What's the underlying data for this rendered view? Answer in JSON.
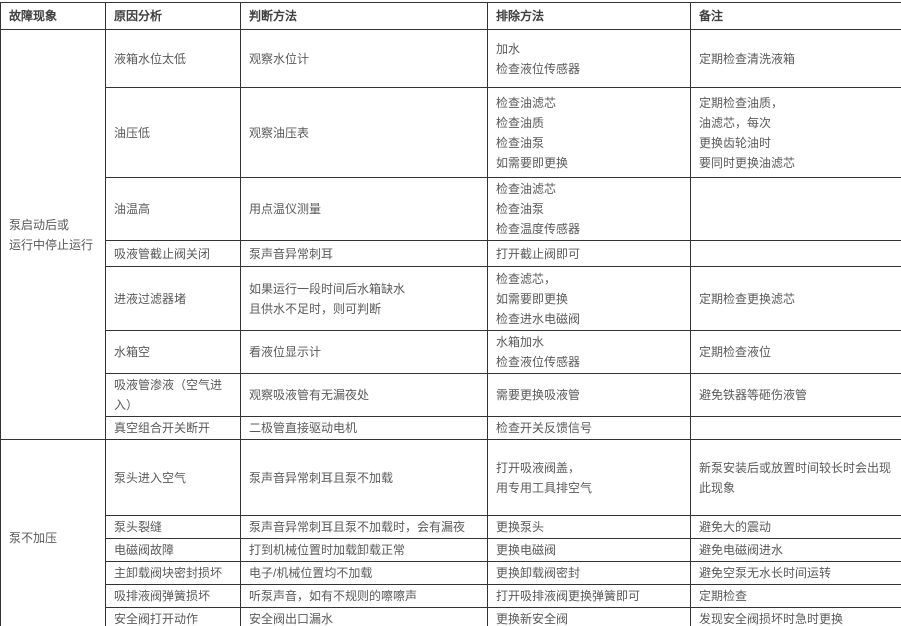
{
  "colors": {
    "border": "#333333",
    "header_text": "#404040",
    "body_text": "#5a5a5a",
    "background": "#ffffff"
  },
  "table": {
    "headers": [
      "故障现象",
      "原因分析",
      "判断方法",
      "排除方法",
      "备注"
    ],
    "groups": [
      {
        "fault": "泵启动后或\n运行中停止运行",
        "rows": [
          {
            "cause": "液箱水位太低",
            "method": "观察水位计",
            "fix": "加水\n检查液位传感器",
            "note": "定期检查清洗液箱"
          },
          {
            "cause": "油压低",
            "method": "观察油压表",
            "fix": "检查油滤芯\n检查油质\n检查油泵\n如需要即更换",
            "note": "定期检查油质，\n油滤芯，每次\n更换齿轮油时\n要同时更换油滤芯"
          },
          {
            "cause": "油温高",
            "method": "用点温仪测量",
            "fix": "检查油滤芯\n检查油泵\n检查温度传感器",
            "note": ""
          },
          {
            "cause": "吸液管截止阀关闭",
            "method": "泵声音异常刺耳",
            "fix": "打开截止阀即可",
            "note": ""
          },
          {
            "cause": "进液过滤器堵",
            "method": "如果运行一段时间后水箱缺水\n且供水不足时，则可判断",
            "fix": "检查滤芯，\n如需要即更换\n检查进水电磁阀",
            "note": "定期检查更换滤芯"
          },
          {
            "cause": "水箱空",
            "method": "看液位显示计",
            "fix": "水箱加水\n检查液位传感器",
            "note": "定期检查液位"
          },
          {
            "cause": "吸液管渗液（空气进入）",
            "method": "观察吸液管有无漏夜处",
            "fix": "需要更换吸液管",
            "note": "避免铁器等砸伤液管"
          },
          {
            "cause": "真空组合开关断开",
            "method": "二极管直接驱动电机",
            "fix": "检查开关反馈信号",
            "note": ""
          }
        ]
      },
      {
        "fault": "泵不加压",
        "rows": [
          {
            "cause": "泵头进入空气",
            "method": "泵声音异常刺耳且泵不加载",
            "fix": "打开吸液阀盖，\n用专用工具排空气",
            "note": "新泵安装后或放置时间较长时会出现此现象"
          },
          {
            "cause": "泵头裂缝",
            "method": "泵声音异常刺耳且泵不加载时，会有漏夜",
            "fix": "更换泵头",
            "note": "避免大的震动"
          },
          {
            "cause": "电磁阀故障",
            "method": "打到机械位置时加载卸载正常",
            "fix": "更换电磁阀",
            "note": "避免电磁阀进水"
          },
          {
            "cause": "主卸载阀块密封损坏",
            "method": "电子/机械位置均不加载",
            "fix": "更换卸载阀密封",
            "note": "避免空泵无水长时间运转"
          },
          {
            "cause": "吸排液阀弹簧损坏",
            "method": "听泵声音，如有不规则的嚓嚓声",
            "fix": "打开吸排液阀更换弹簧即可",
            "note": "定期检查"
          },
          {
            "cause": "安全阀打开动作",
            "method": "安全阀出口漏水",
            "fix": "更换新安全阀",
            "note": "发现安全阀损坏时急时更换"
          },
          {
            "cause": "",
            "method": "",
            "fix": "",
            "note": ""
          }
        ]
      }
    ]
  }
}
